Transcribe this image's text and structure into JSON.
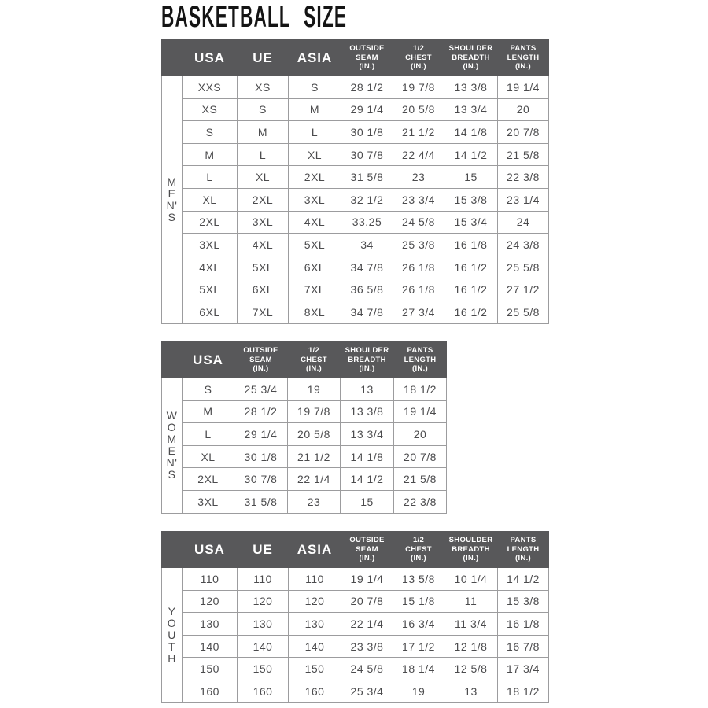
{
  "page": {
    "title_word1": "BASKETBALL",
    "title_word2": "SIZE"
  },
  "colors": {
    "header_bg": "#58585a",
    "header_text": "#ffffff",
    "body_text": "#4b4b4d",
    "grid_line": "#9c9c9e",
    "title_text": "#141414"
  },
  "tables": [
    {
      "name": "mens",
      "group_label": "MEN'S",
      "group_letters": "M\nE\nN'\nS",
      "headers": [
        {
          "label": "USA",
          "size": "lg"
        },
        {
          "label": "UE",
          "size": "lg"
        },
        {
          "label": "ASIA",
          "size": "lg"
        },
        {
          "label": "OUTSIDE\nSEAM\n(IN.)",
          "size": "sm"
        },
        {
          "label": "1/2\nCHEST\n(IN.)",
          "size": "sm"
        },
        {
          "label": "SHOULDER\nBREADTH\n(IN.)",
          "size": "sm"
        },
        {
          "label": "PANTS\nLENGTH\n(IN.)",
          "size": "sm"
        }
      ],
      "rows": [
        [
          "XXS",
          "XS",
          "S",
          "28 1/2",
          "19 7/8",
          "13 3/8",
          "19 1/4"
        ],
        [
          "XS",
          "S",
          "M",
          "29 1/4",
          "20 5/8",
          "13 3/4",
          "20"
        ],
        [
          "S",
          "M",
          "L",
          "30 1/8",
          "21 1/2",
          "14 1/8",
          "20 7/8"
        ],
        [
          "M",
          "L",
          "XL",
          "30 7/8",
          "22 4/4",
          "14 1/2",
          "21 5/8"
        ],
        [
          "L",
          "XL",
          "2XL",
          "31 5/8",
          "23",
          "15",
          "22 3/8"
        ],
        [
          "XL",
          "2XL",
          "3XL",
          "32 1/2",
          "23 3/4",
          "15 3/8",
          "23 1/4"
        ],
        [
          "2XL",
          "3XL",
          "4XL",
          "33.25",
          "24 5/8",
          "15 3/4",
          "24"
        ],
        [
          "3XL",
          "4XL",
          "5XL",
          "34",
          "25 3/8",
          "16 1/8",
          "24 3/8"
        ],
        [
          "4XL",
          "5XL",
          "6XL",
          "34 7/8",
          "26 1/8",
          "16 1/2",
          "25 5/8"
        ],
        [
          "5XL",
          "6XL",
          "7XL",
          "36 5/8",
          "26 1/8",
          "16 1/2",
          "27 1/2"
        ],
        [
          "6XL",
          "7XL",
          "8XL",
          "34 7/8",
          "27 3/4",
          "16 1/2",
          "25 5/8"
        ]
      ]
    },
    {
      "name": "womens",
      "group_label": "WOMEN'S",
      "group_letters": "W\nO\nM\nE\nN'\nS",
      "headers": [
        {
          "label": "USA",
          "size": "lg"
        },
        {
          "label": "OUTSIDE\nSEAM\n(IN.)",
          "size": "sm"
        },
        {
          "label": "1/2\nCHEST\n(IN.)",
          "size": "sm"
        },
        {
          "label": "SHOULDER\nBREADTH\n(IN.)",
          "size": "sm"
        },
        {
          "label": "PANTS\nLENGTH\n(IN.)",
          "size": "sm"
        }
      ],
      "rows": [
        [
          "S",
          "25 3/4",
          "19",
          "13",
          "18 1/2"
        ],
        [
          "M",
          "28 1/2",
          "19 7/8",
          "13 3/8",
          "19 1/4"
        ],
        [
          "L",
          "29 1/4",
          "20 5/8",
          "13 3/4",
          "20"
        ],
        [
          "XL",
          "30 1/8",
          "21 1/2",
          "14 1/8",
          "20 7/8"
        ],
        [
          "2XL",
          "30 7/8",
          "22 1/4",
          "14 1/2",
          "21 5/8"
        ],
        [
          "3XL",
          "31 5/8",
          "23",
          "15",
          "22 3/8"
        ]
      ]
    },
    {
      "name": "youth",
      "group_label": "YOUTH",
      "group_letters": "Y\nO\nU\nT\nH",
      "headers": [
        {
          "label": "USA",
          "size": "lg"
        },
        {
          "label": "UE",
          "size": "lg"
        },
        {
          "label": "ASIA",
          "size": "lg"
        },
        {
          "label": "OUTSIDE\nSEAM\n(IN.)",
          "size": "sm"
        },
        {
          "label": "1/2\nCHEST\n(IN.)",
          "size": "sm"
        },
        {
          "label": "SHOULDER\nBREADTH\n(IN.)",
          "size": "sm"
        },
        {
          "label": "PANTS\nLENGTH\n(IN.)",
          "size": "sm"
        }
      ],
      "rows": [
        [
          "110",
          "110",
          "110",
          "19 1/4",
          "13 5/8",
          "10 1/4",
          "14 1/2"
        ],
        [
          "120",
          "120",
          "120",
          "20 7/8",
          "15 1/8",
          "11",
          "15 3/8"
        ],
        [
          "130",
          "130",
          "130",
          "22 1/4",
          "16 3/4",
          "11 3/4",
          "16 1/8"
        ],
        [
          "140",
          "140",
          "140",
          "23 3/8",
          "17 1/2",
          "12 1/8",
          "16 7/8"
        ],
        [
          "150",
          "150",
          "150",
          "24 5/8",
          "18 1/4",
          "12 5/8",
          "17 3/4"
        ],
        [
          "160",
          "160",
          "160",
          "25 3/4",
          "19",
          "13",
          "18 1/2"
        ]
      ]
    }
  ]
}
